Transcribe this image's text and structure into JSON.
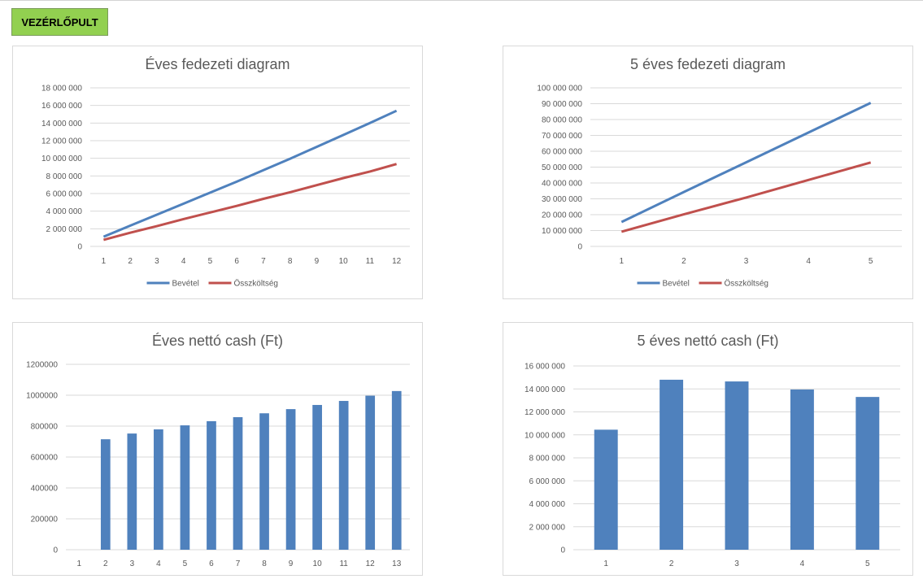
{
  "dashboard_button": {
    "label": "VEZÉRLŐPULT"
  },
  "chart_data": [
    {
      "type": "line",
      "title": "Éves fedezeti diagram",
      "x": [
        1,
        2,
        3,
        4,
        5,
        6,
        7,
        8,
        9,
        10,
        11,
        12
      ],
      "ylim": [
        0,
        18000000
      ],
      "yticks": [
        "0",
        "2 000 000",
        "4 000 000",
        "6 000 000",
        "8 000 000",
        "10 000 000",
        "12 000 000",
        "14 000 000",
        "16 000 000",
        "18 000 000"
      ],
      "series": [
        {
          "name": "Bevétel",
          "color": "#4f81bd",
          "values": [
            1100000,
            2350000,
            3600000,
            4850000,
            6100000,
            7350000,
            8650000,
            9950000,
            11300000,
            12650000,
            14000000,
            15400000
          ]
        },
        {
          "name": "Összköltség",
          "color": "#c0504d",
          "values": [
            750000,
            1550000,
            2300000,
            3100000,
            3850000,
            4600000,
            5400000,
            6150000,
            6950000,
            7750000,
            8500000,
            9350000
          ]
        }
      ],
      "legend": "bottom",
      "grid": true
    },
    {
      "type": "line",
      "title": "5 éves fedezeti diagram",
      "x": [
        1,
        2,
        3,
        4,
        5
      ],
      "ylim": [
        0,
        100000000
      ],
      "yticks": [
        "0",
        "10 000 000",
        "20 000 000",
        "30 000 000",
        "40 000 000",
        "50 000 000",
        "60 000 000",
        "70 000 000",
        "80 000 000",
        "90 000 000",
        "100 000 000"
      ],
      "series": [
        {
          "name": "Bevétel",
          "color": "#4f81bd",
          "values": [
            15400000,
            34300000,
            53000000,
            71800000,
            90500000
          ]
        },
        {
          "name": "Összköltség",
          "color": "#c0504d",
          "values": [
            9300000,
            20200000,
            30800000,
            41900000,
            52900000
          ]
        }
      ],
      "legend": "bottom",
      "grid": true
    },
    {
      "type": "bar",
      "title": "Éves nettó cash (Ft)",
      "categories": [
        "1",
        "2",
        "3",
        "4",
        "5",
        "6",
        "7",
        "8",
        "9",
        "10",
        "11",
        "12",
        "13"
      ],
      "ylim": [
        0,
        1200000
      ],
      "yticks": [
        "0",
        "200000",
        "400000",
        "600000",
        "800000",
        "1000000",
        "1200000"
      ],
      "series": [
        {
          "color": "#4f81bd",
          "values": [
            0,
            715000,
            752000,
            779000,
            805000,
            832000,
            858000,
            883000,
            910000,
            937000,
            963000,
            997000,
            1027000
          ]
        }
      ],
      "grid": true
    },
    {
      "type": "bar",
      "title": "5 éves nettó cash (Ft)",
      "categories": [
        "1",
        "2",
        "3",
        "4",
        "5"
      ],
      "ylim": [
        0,
        16000000
      ],
      "yticks": [
        "0",
        "2 000 000",
        "4 000 000",
        "6 000 000",
        "8 000 000",
        "10 000 000",
        "12 000 000",
        "14 000 000",
        "16 000 000"
      ],
      "series": [
        {
          "color": "#4f81bd",
          "values": [
            10450000,
            14800000,
            14650000,
            13950000,
            13300000
          ]
        }
      ],
      "grid": true
    }
  ]
}
